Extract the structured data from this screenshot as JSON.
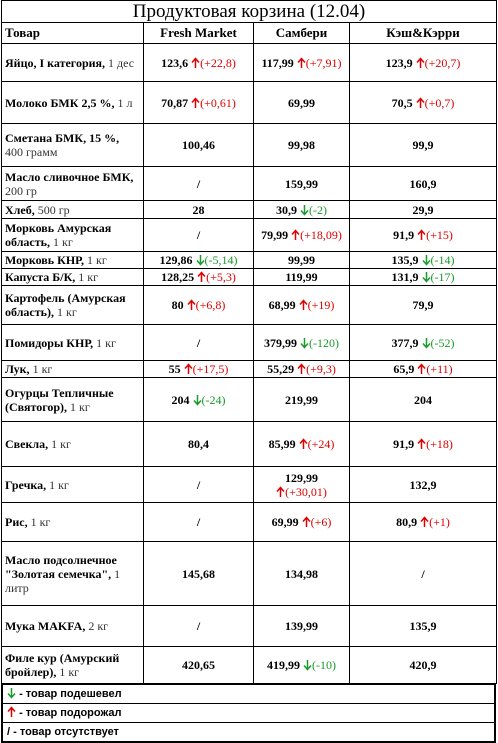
{
  "title": "Продуктовая корзина (12.04)",
  "header": [
    "Товар",
    "Fresh Market",
    "Самбери",
    "Кэш&Кэрри"
  ],
  "rows": [
    {
      "name": "Яйцо, I категория,",
      "unit": "1 дес",
      "cells": [
        {
          "price": "123,6",
          "change": "(+22,8)",
          "dir": "up"
        },
        {
          "price": "117,99",
          "change": "(+7,91)",
          "dir": "up"
        },
        {
          "price": "123,9",
          "change": "(+20,7)",
          "dir": "up"
        }
      ]
    },
    {
      "name": "Молоко БМК 2,5 %,",
      "unit": "1 л",
      "cells": [
        {
          "price": "70,87",
          "change": "(+0,61)",
          "dir": "up"
        },
        {
          "price": "69,99"
        },
        {
          "price": "70,5",
          "change": "(+0,7)",
          "dir": "up"
        }
      ]
    },
    {
      "name": "Сметана БМК, 15 %,",
      "unit": "400 грамм",
      "cells": [
        {
          "price": "100,46"
        },
        {
          "price": "99,98"
        },
        {
          "price": "99,9"
        }
      ]
    },
    {
      "name": "Масло сливочное БМК,",
      "unit": "200 гр",
      "cells": [
        {
          "price": "/"
        },
        {
          "price": "159,99"
        },
        {
          "price": "160,9"
        }
      ]
    },
    {
      "name": "Хлеб,",
      "unit": "500 гр",
      "cells": [
        {
          "price": "28"
        },
        {
          "price": "30,9",
          "change": "(-2)",
          "dir": "down"
        },
        {
          "price": "29,9"
        }
      ]
    },
    {
      "name": "Морковь Амурская область,",
      "unit": "1 кг",
      "cells": [
        {
          "price": "/"
        },
        {
          "price": "79,99",
          "change": "(+18,09)",
          "dir": "up"
        },
        {
          "price": "91,9",
          "change": "(+15)",
          "dir": "up"
        }
      ]
    },
    {
      "name": "Морковь КНР,",
      "unit": "1 кг",
      "cells": [
        {
          "price": "129,86",
          "change": "(-5,14)",
          "dir": "down"
        },
        {
          "price": "99,99"
        },
        {
          "price": "135,9",
          "change": "(-14)",
          "dir": "down"
        }
      ]
    },
    {
      "name": "Капуста Б/К,",
      "unit": "1 кг",
      "cells": [
        {
          "price": "128,25",
          "change": "(+5,3)",
          "dir": "up"
        },
        {
          "price": "119,99"
        },
        {
          "price": "131,9",
          "change": "(-17)",
          "dir": "down"
        }
      ]
    },
    {
      "name": "Картофель (Амурская область),",
      "unit": "1 кг",
      "cells": [
        {
          "price": "80",
          "change": "(+6,8)",
          "dir": "up"
        },
        {
          "price": "68,99",
          "change": "(+19)",
          "dir": "up"
        },
        {
          "price": "79,9"
        }
      ]
    },
    {
      "name": "Помидоры КНР,",
      "unit": "1 кг",
      "cells": [
        {
          "price": "/"
        },
        {
          "price": "379,99",
          "change": "(-120)",
          "dir": "down"
        },
        {
          "price": "377,9",
          "change": "(-52)",
          "dir": "down"
        }
      ]
    },
    {
      "name": "Лук,",
      "unit": "1 кг",
      "cells": [
        {
          "price": "55",
          "change": "(+17,5)",
          "dir": "up"
        },
        {
          "price": "55,29",
          "change": "(+9,3)",
          "dir": "up"
        },
        {
          "price": "65,9",
          "change": "(+11)",
          "dir": "up"
        }
      ]
    },
    {
      "name": "Огурцы Тепличные (Святогор),",
      "unit": "1 кг",
      "cells": [
        {
          "price": "204",
          "change": "(-24)",
          "dir": "down"
        },
        {
          "price": "219,99"
        },
        {
          "price": "204"
        }
      ]
    },
    {
      "name": "Свекла,",
      "unit": "1 кг",
      "cells": [
        {
          "price": "80,4"
        },
        {
          "price": "85,99",
          "change": "(+24)",
          "dir": "up"
        },
        {
          "price": "91,9",
          "change": "(+18)",
          "dir": "up"
        }
      ]
    },
    {
      "name": "Гречка,",
      "unit": "1 кг",
      "cells": [
        {
          "price": "/"
        },
        {
          "price": "129,99",
          "change": "(+30,01)",
          "dir": "up"
        },
        {
          "price": "132,9"
        }
      ]
    },
    {
      "name": "Рис,",
      "unit": "1 кг",
      "cells": [
        {
          "price": "/"
        },
        {
          "price": "69,99",
          "change": "(+6)",
          "dir": "up"
        },
        {
          "price": "80,9",
          "change": "(+1)",
          "dir": "up"
        }
      ]
    },
    {
      "name": "Масло подсолнечное \"Золотая семечка\",",
      "unit": "1 литр",
      "cells": [
        {
          "price": "145,68"
        },
        {
          "price": "134,98"
        },
        {
          "price": "/"
        }
      ]
    },
    {
      "name": "Мука MAKFA,",
      "unit": "2 кг",
      "cells": [
        {
          "price": "/"
        },
        {
          "price": "139,99"
        },
        {
          "price": "135,9"
        }
      ]
    },
    {
      "name": "Филе кур (Амурский бройлер),",
      "unit": "1 кг",
      "cells": [
        {
          "price": "420,65"
        },
        {
          "price": "419,99",
          "change": "(-10)",
          "dir": "down"
        },
        {
          "price": "420,9"
        }
      ]
    }
  ],
  "legend": [
    {
      "dir": "down",
      "text": "- товар подешевел"
    },
    {
      "dir": "up",
      "text": "- товар подорожал"
    },
    {
      "symbol": "/",
      "text": "- товар отсутствует"
    }
  ]
}
